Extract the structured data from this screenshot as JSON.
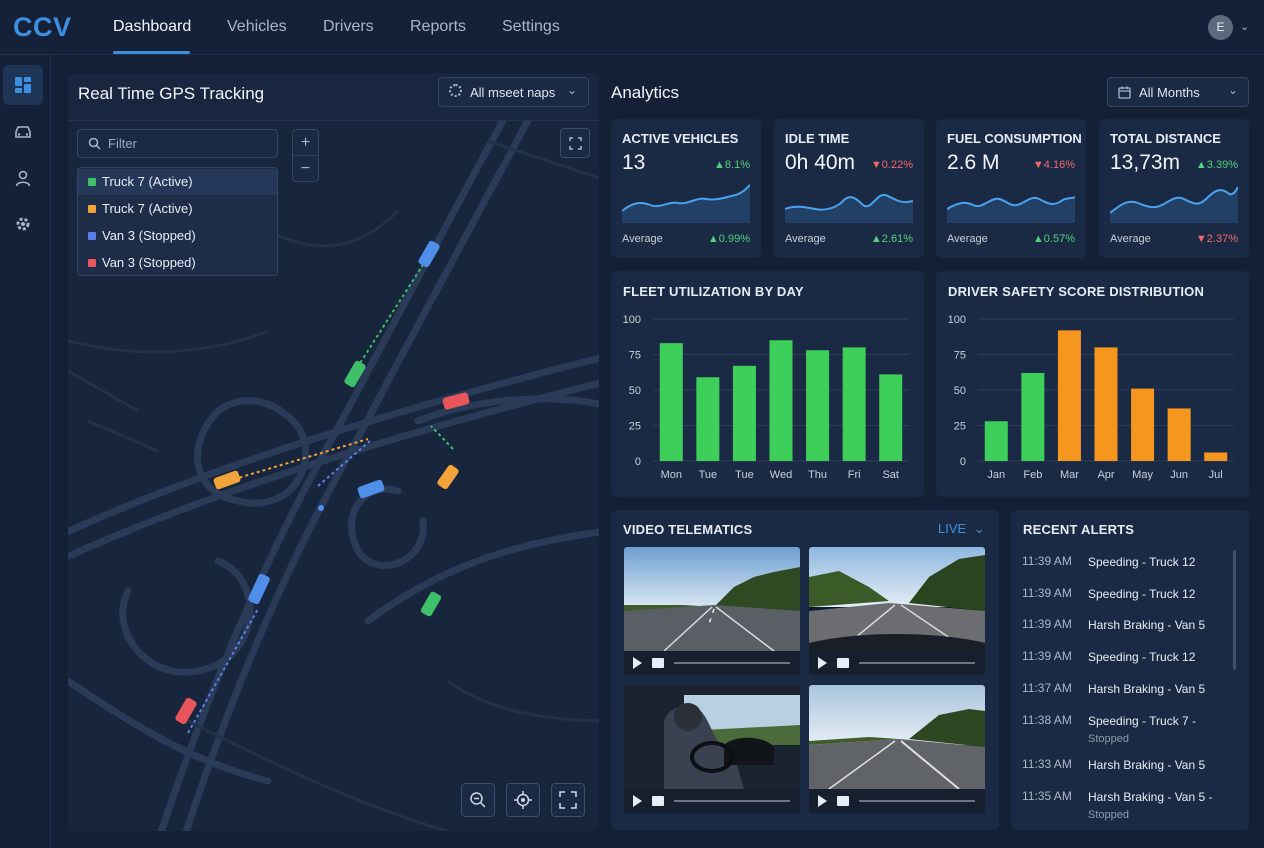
{
  "app": {
    "logo": "CCV",
    "user_initial": "E"
  },
  "nav": {
    "tabs": [
      {
        "label": "Dashboard",
        "active": true
      },
      {
        "label": "Vehicles"
      },
      {
        "label": "Drivers"
      },
      {
        "label": "Reports"
      },
      {
        "label": "Settings"
      }
    ]
  },
  "sidebar": {
    "icons": [
      "dashboard-icon",
      "car-icon",
      "user-icon",
      "gear-icon"
    ]
  },
  "map": {
    "title": "Real Time GPS Tracking",
    "map_select": "All mseet naps",
    "filter_placeholder": "Filter",
    "zoom_in": "+",
    "zoom_out": "−",
    "vehicles": [
      {
        "label": "Truck 7 (Active)",
        "color": "#3fbf6a"
      },
      {
        "label": "Truck 7 (Active)",
        "color": "#f2a33a"
      },
      {
        "label": "Van 3 (Stopped)",
        "color": "#5b7fe8"
      },
      {
        "label": "Van 3 (Stopped)",
        "color": "#e8555a"
      }
    ]
  },
  "analytics": {
    "title": "Analytics",
    "period_select": "All Months",
    "kpis": [
      {
        "label": "ACTIVE VEHICLES",
        "value": "13",
        "change": "▲8.1%",
        "dir": "up",
        "avg_label": "Average",
        "avg_change": "▲0.99%",
        "avg_dir": "up"
      },
      {
        "label": "IDLE TIME",
        "value": "0h 40m",
        "change": "▼0.22%",
        "dir": "down",
        "avg_label": "Average",
        "avg_change": "▲2.61%",
        "avg_dir": "up"
      },
      {
        "label": "FUEL CONSUMPTION",
        "value": "2.6 M",
        "change": "▼4.16%",
        "dir": "down",
        "avg_label": "Average",
        "avg_change": "▲0.57%",
        "avg_dir": "up"
      },
      {
        "label": "TOTAL DISTANCE",
        "value": "13,73m",
        "change": "▲3.39%",
        "dir": "up",
        "avg_label": "Average",
        "avg_change": "▼2.37%",
        "avg_dir": "down"
      }
    ]
  },
  "chart_data": [
    {
      "type": "bar",
      "title": "FLEET UTILIZATION BY DAY",
      "categories": [
        "Mon",
        "Tue",
        "Tue",
        "Wed",
        "Thu",
        "Fri",
        "Sat"
      ],
      "values": [
        83,
        59,
        67,
        85,
        78,
        80,
        61
      ],
      "ylim": [
        0,
        100
      ],
      "yticks": [
        0,
        25,
        50,
        75,
        100
      ],
      "colors": [
        "#3ecf5b"
      ]
    },
    {
      "type": "bar",
      "title": "DRIVER SAFETY SCORE DISTRIBUTION",
      "categories": [
        "Jan",
        "Feb",
        "Mar",
        "Apr",
        "May",
        "Jun",
        "Jul"
      ],
      "values": [
        28,
        62,
        92,
        80,
        51,
        37,
        6
      ],
      "ylim": [
        0,
        100
      ],
      "yticks": [
        0,
        25,
        50,
        75,
        100
      ],
      "colors": [
        "#3ecf5b",
        "#3ecf5b",
        "#f7961e",
        "#f7961e",
        "#f7961e",
        "#f7961e",
        "#f7961e"
      ]
    }
  ],
  "video": {
    "title": "VIDEO TELEMATICS",
    "live_label": "LIVE"
  },
  "alerts": {
    "title": "RECENT ALERTS",
    "items": [
      {
        "time": "11:39 AM",
        "text": "Speeding - Truck 12"
      },
      {
        "time": "11:39 AM",
        "text": "Speeding - Truck 12"
      },
      {
        "time": "11:39 AM",
        "text": "Harsh Braking - Van 5"
      },
      {
        "time": "11:39 AM",
        "text": "Speeding - Truck 12"
      },
      {
        "time": "11:37 AM",
        "text": "Harsh Braking - Van 5"
      },
      {
        "time": "11:38 AM",
        "text": "Speeding - Truck 7 -",
        "sub": "Stopped"
      },
      {
        "time": "11:33 AM",
        "text": "Harsh Braking - Van 5"
      },
      {
        "time": "11:35 AM",
        "text": "Harsh Braking - Van 5 -",
        "sub": "Stopped"
      }
    ]
  }
}
